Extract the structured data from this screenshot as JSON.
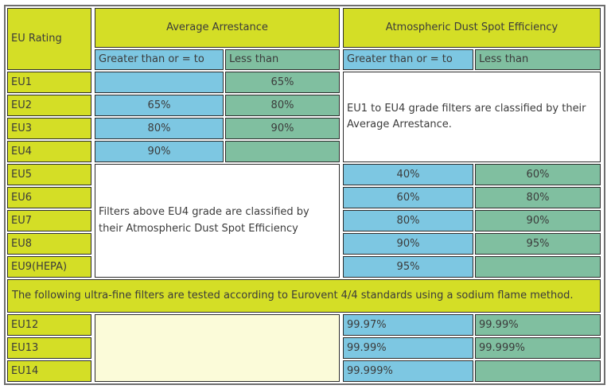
{
  "table": {
    "corner_label": "EU Rating",
    "group_headers": [
      "Average Arrestance",
      "Atmospheric Dust Spot Efficiency"
    ],
    "sub_headers": {
      "gte": "Greater than or = to",
      "lt": "Less than"
    },
    "notes": {
      "eu1_eu4": "EU1 to EU4 grade filters are classified by their Average Arrestance.",
      "above_eu4": "Filters above EU4 grade are classified by their Atmospheric Dust Spot Efficiency",
      "ultra_fine": "The following ultra-fine filters are tested according to Eurovent 4/4 standards using a sodium flame method."
    },
    "rows_arrestance": [
      {
        "rating": "EU1",
        "gte": "",
        "lt": "65%"
      },
      {
        "rating": "EU2",
        "gte": "65%",
        "lt": "80%"
      },
      {
        "rating": "EU3",
        "gte": "80%",
        "lt": "90%"
      },
      {
        "rating": "EU4",
        "gte": "90%",
        "lt": ""
      }
    ],
    "rows_dust_spot": [
      {
        "rating": "EU5",
        "gte": "40%",
        "lt": "60%"
      },
      {
        "rating": "EU6",
        "gte": "60%",
        "lt": "80%"
      },
      {
        "rating": "EU7",
        "gte": "80%",
        "lt": "90%"
      },
      {
        "rating": "EU8",
        "gte": "90%",
        "lt": "95%"
      },
      {
        "rating": "EU9(HEPA)",
        "gte": "95%",
        "lt": ""
      }
    ],
    "rows_sodium_flame": [
      {
        "rating": "EU12",
        "gte": "99.97%",
        "lt": "99.99%"
      },
      {
        "rating": "EU13",
        "gte": "99.99%",
        "lt": "99.999%"
      },
      {
        "rating": "EU14",
        "gte": "99.999%",
        "lt": ""
      }
    ],
    "colors": {
      "rating_yellow": "#d4de26",
      "gte_blue": "#7dc7e2",
      "lt_green": "#80bfa0",
      "sodium_cream": "#fbfbd9",
      "info_white": "#ffffff",
      "text": "#3b3b3b"
    }
  }
}
